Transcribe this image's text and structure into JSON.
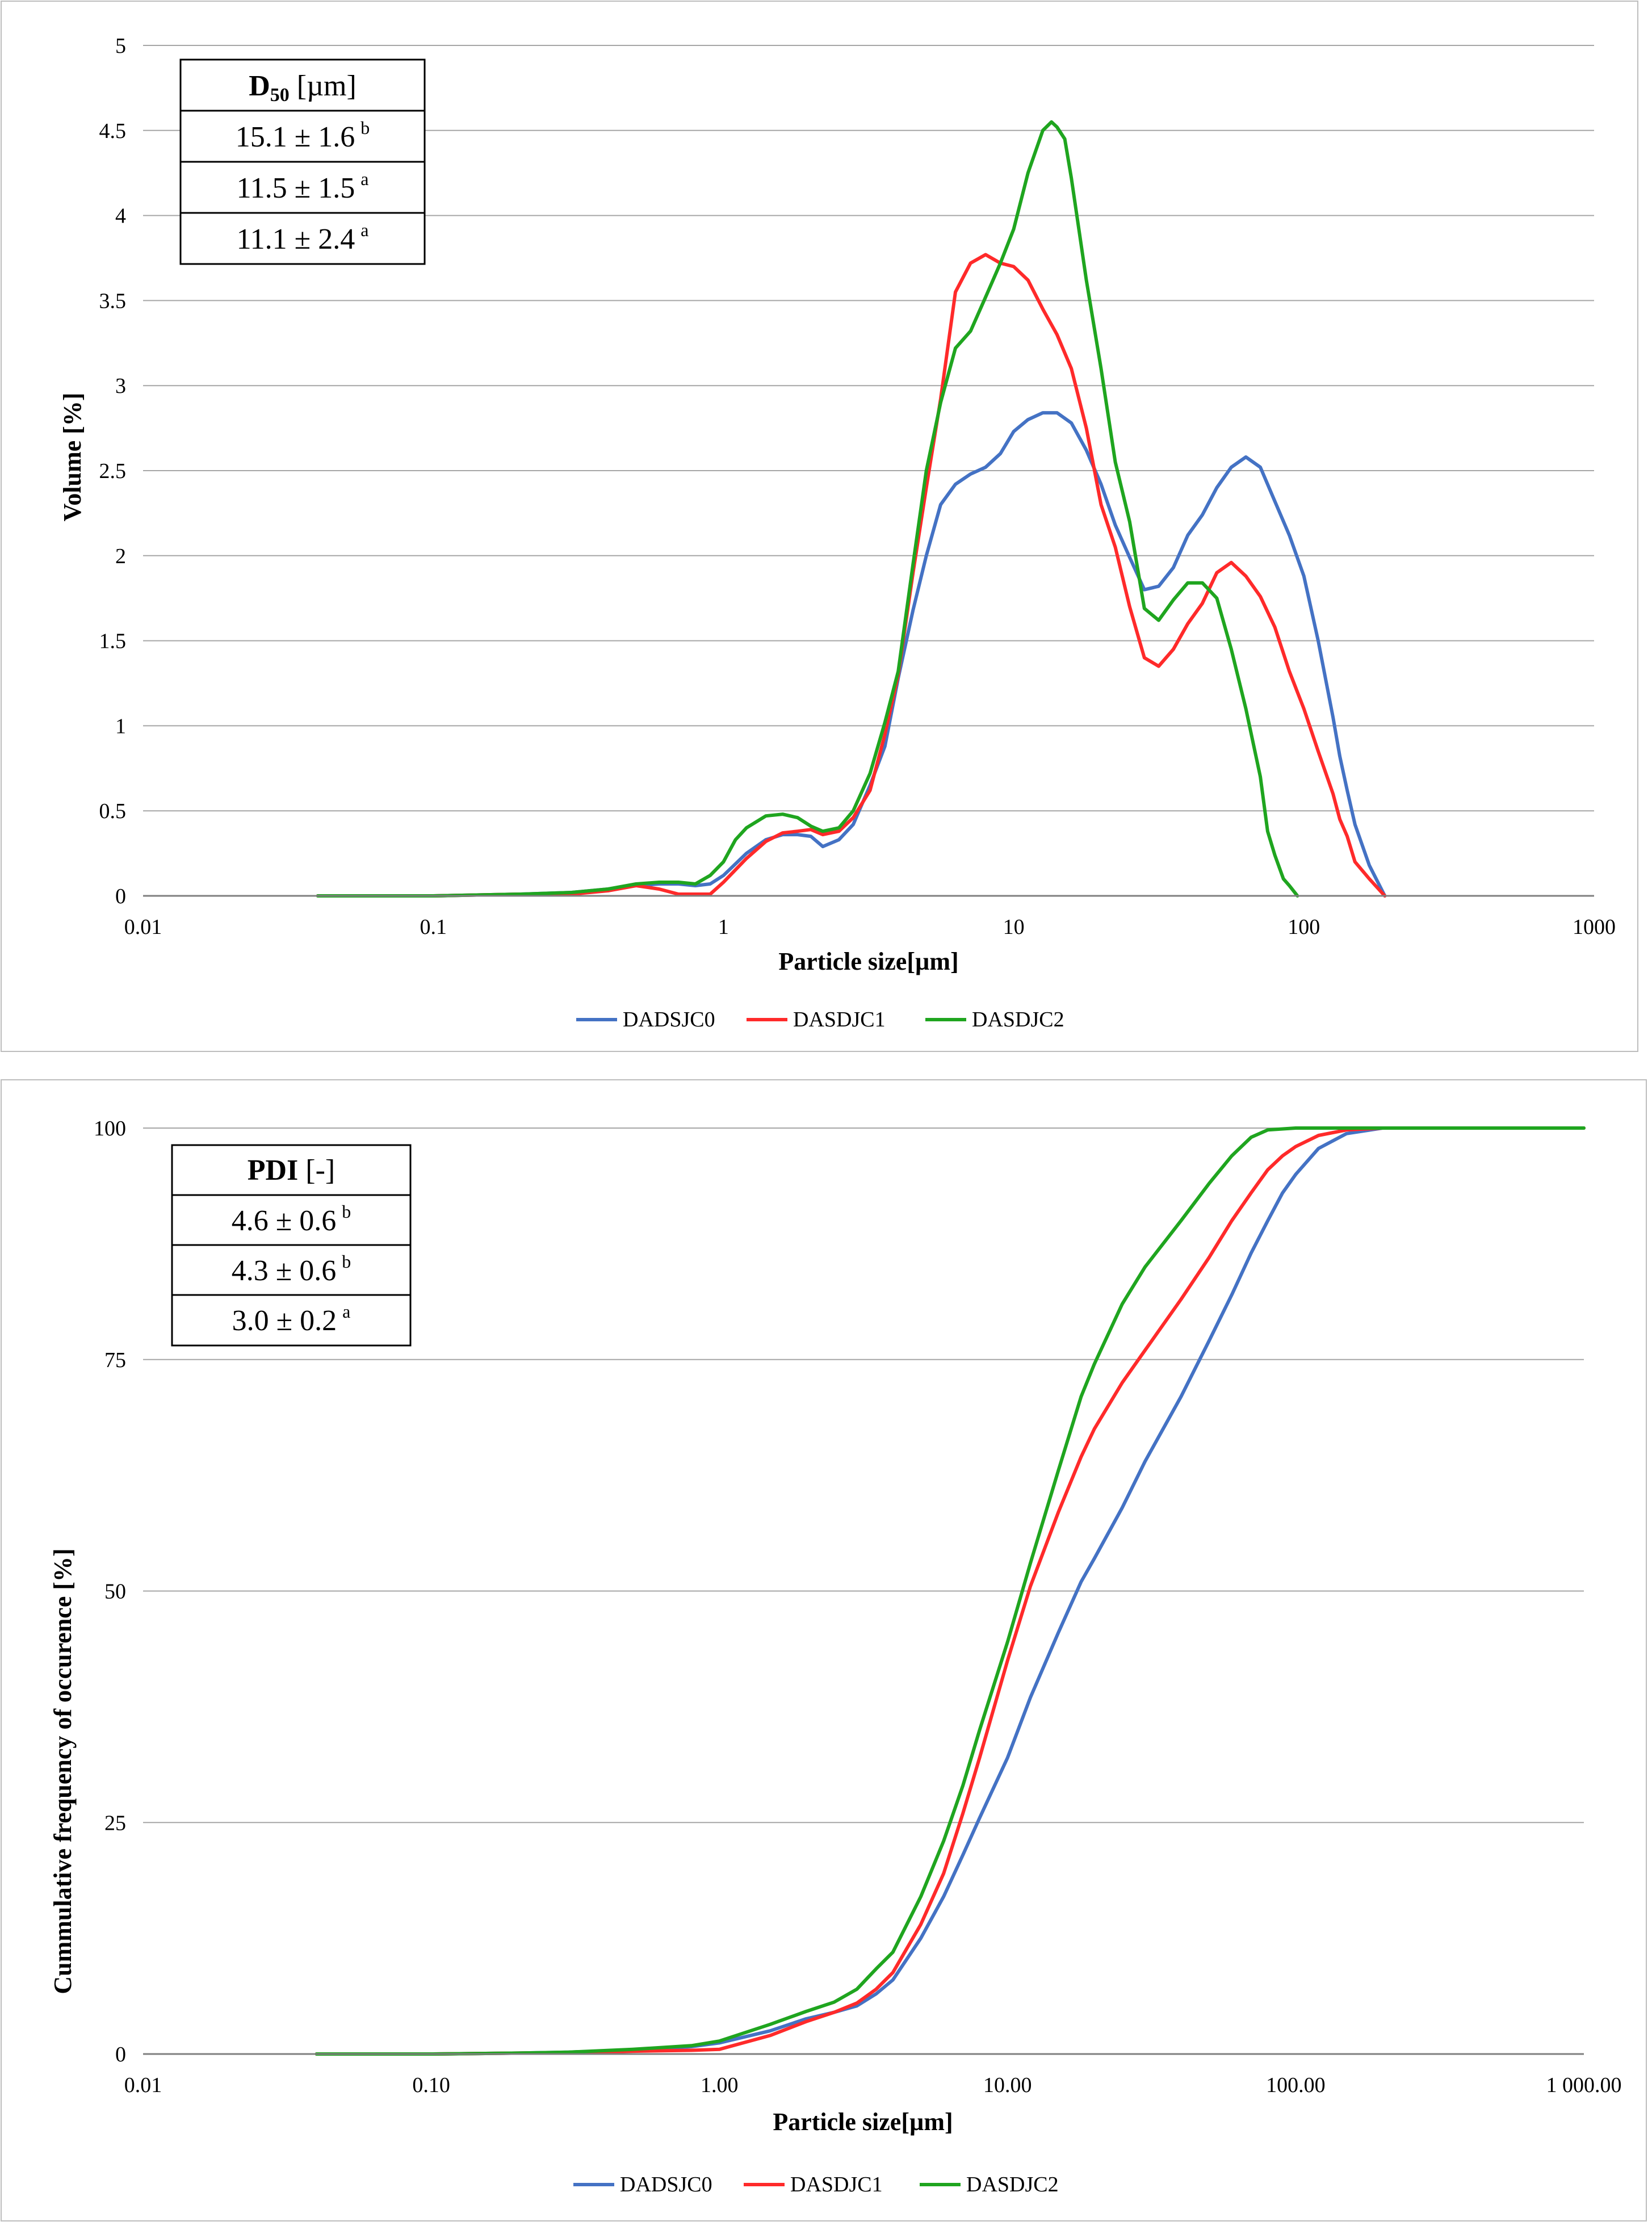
{
  "chart_data": [
    {
      "type": "line",
      "xscale": "log",
      "xlabel": "Particle size[µm]",
      "ylabel": "Volume [%]",
      "xlim": [
        0.01,
        1000
      ],
      "ylim": [
        0,
        5
      ],
      "grid": true,
      "legend": "bottom",
      "x_tick_labels": [
        "0.01",
        "0.1",
        "1",
        "10",
        "100",
        "1000"
      ],
      "x_tick_values": [
        0.01,
        0.1,
        1,
        10,
        100,
        1000
      ],
      "y_tick_labels": [
        "0",
        "0.5",
        "1",
        "1.5",
        "2",
        "2.5",
        "3",
        "3.5",
        "4",
        "4.5",
        "5"
      ],
      "y_tick_values": [
        0,
        0.5,
        1,
        1.5,
        2,
        2.5,
        3,
        3.5,
        4,
        4.5,
        5
      ],
      "table": {
        "header_main": "D",
        "header_sub": "50",
        "header_unit": " [µm]",
        "rows": [
          {
            "text": "15.1 ± 1.6",
            "sup": "b"
          },
          {
            "text": "11.5 ± 1.5",
            "sup": "a"
          },
          {
            "text": "11.1 ± 2.4",
            "sup": "a"
          }
        ]
      },
      "series": [
        {
          "name": "DADSJC0",
          "color": "#4472C4",
          "x": [
            0.04,
            0.1,
            0.2,
            0.3,
            0.4,
            0.5,
            0.6,
            0.7,
            0.8,
            0.9,
            1.0,
            1.2,
            1.4,
            1.6,
            1.8,
            2.0,
            2.2,
            2.5,
            2.8,
            3.2,
            3.6,
            4.0,
            4.5,
            5.0,
            5.6,
            6.3,
            7.1,
            8.0,
            9.0,
            10,
            11.2,
            12.6,
            14.1,
            15.8,
            17.8,
            20,
            22.4,
            25.1,
            28.2,
            31.6,
            35.5,
            39.8,
            44.7,
            50.1,
            56.2,
            63.1,
            70.8,
            79.4,
            89.1,
            100,
            112,
            126,
            133,
            141,
            150,
            168,
            190
          ],
          "y": [
            0,
            0,
            0.01,
            0.02,
            0.04,
            0.06,
            0.07,
            0.07,
            0.06,
            0.07,
            0.12,
            0.25,
            0.33,
            0.36,
            0.36,
            0.35,
            0.29,
            0.33,
            0.42,
            0.65,
            0.88,
            1.28,
            1.68,
            2.0,
            2.3,
            2.42,
            2.48,
            2.52,
            2.6,
            2.73,
            2.8,
            2.84,
            2.84,
            2.78,
            2.62,
            2.42,
            2.18,
            1.99,
            1.8,
            1.82,
            1.93,
            2.12,
            2.24,
            2.4,
            2.52,
            2.58,
            2.52,
            2.32,
            2.12,
            1.88,
            1.5,
            1.05,
            0.82,
            0.62,
            0.42,
            0.18,
            0
          ]
        },
        {
          "name": "DASDJC1",
          "color": "#FF2A2A",
          "x": [
            0.04,
            0.1,
            0.2,
            0.3,
            0.4,
            0.5,
            0.6,
            0.7,
            0.8,
            0.9,
            1.0,
            1.2,
            1.4,
            1.6,
            1.8,
            2.0,
            2.2,
            2.5,
            2.8,
            3.2,
            3.6,
            4.0,
            4.5,
            5.0,
            5.6,
            6.3,
            7.1,
            8.0,
            9.0,
            10,
            11.2,
            12.6,
            14.1,
            15.8,
            17.8,
            20,
            22.4,
            25.1,
            28.2,
            31.6,
            35.5,
            39.8,
            44.7,
            50.1,
            56.2,
            63.1,
            70.8,
            79.4,
            89.1,
            100,
            112,
            126,
            133,
            141,
            150,
            168,
            190
          ],
          "y": [
            0,
            0,
            0.01,
            0.01,
            0.03,
            0.06,
            0.04,
            0.01,
            0.01,
            0.01,
            0.08,
            0.22,
            0.32,
            0.37,
            0.38,
            0.39,
            0.36,
            0.38,
            0.46,
            0.62,
            0.95,
            1.3,
            1.9,
            2.4,
            2.92,
            3.55,
            3.72,
            3.77,
            3.72,
            3.7,
            3.62,
            3.45,
            3.3,
            3.1,
            2.75,
            2.3,
            2.05,
            1.7,
            1.4,
            1.35,
            1.45,
            1.6,
            1.72,
            1.9,
            1.96,
            1.88,
            1.76,
            1.58,
            1.32,
            1.1,
            0.85,
            0.6,
            0.45,
            0.35,
            0.2,
            0.1,
            0
          ]
        },
        {
          "name": "DASDJC2",
          "color": "#1FA51F",
          "x": [
            0.04,
            0.1,
            0.2,
            0.3,
            0.4,
            0.5,
            0.6,
            0.7,
            0.8,
            0.9,
            1.0,
            1.1,
            1.2,
            1.4,
            1.6,
            1.8,
            2.0,
            2.2,
            2.5,
            2.8,
            3.2,
            3.6,
            4.0,
            4.5,
            5.0,
            5.6,
            6.3,
            7.1,
            8.0,
            9.0,
            10,
            11.2,
            12.6,
            13.5,
            14.1,
            15.0,
            15.8,
            17.8,
            20,
            22.4,
            25.1,
            28.2,
            31.6,
            35.5,
            39.8,
            44.7,
            50.1,
            56.2,
            63.1,
            70.8,
            75,
            79.4,
            85,
            89.1,
            95
          ],
          "y": [
            0,
            0,
            0.01,
            0.02,
            0.04,
            0.07,
            0.08,
            0.08,
            0.07,
            0.12,
            0.2,
            0.33,
            0.4,
            0.47,
            0.48,
            0.46,
            0.41,
            0.38,
            0.4,
            0.5,
            0.72,
            1.02,
            1.32,
            1.95,
            2.5,
            2.9,
            3.22,
            3.32,
            3.52,
            3.72,
            3.92,
            4.25,
            4.5,
            4.55,
            4.52,
            4.45,
            4.22,
            3.62,
            3.1,
            2.55,
            2.2,
            1.69,
            1.62,
            1.74,
            1.84,
            1.84,
            1.75,
            1.45,
            1.1,
            0.7,
            0.38,
            0.24,
            0.1,
            0.06,
            0
          ]
        }
      ]
    },
    {
      "type": "line",
      "xscale": "log",
      "xlabel": "Particle size[µm]",
      "ylabel": "Cummulative  frequency of occurence [%]",
      "xlim": [
        0.01,
        1000
      ],
      "ylim": [
        0,
        100
      ],
      "grid": true,
      "legend": "bottom",
      "x_tick_labels": [
        "0.01",
        "0.10",
        "1.00",
        "10.00",
        "100.00",
        "1 000.00"
      ],
      "x_tick_values": [
        0.01,
        0.1,
        1,
        10,
        100,
        1000
      ],
      "y_tick_labels": [
        "0",
        "25",
        "50",
        "75",
        "100"
      ],
      "y_tick_values": [
        0,
        25,
        50,
        75,
        100
      ],
      "table": {
        "header_main": "PDI",
        "header_sub": "",
        "header_unit": " [-]",
        "rows": [
          {
            "text": "4.6 ± 0.6",
            "sup": "b"
          },
          {
            "text": "4.3 ± 0.6",
            "sup": "b"
          },
          {
            "text": "3.0 ± 0.2",
            "sup": "a"
          }
        ]
      },
      "series": [
        {
          "name": "DADSJC0",
          "color": "#4472C4",
          "x": [
            0.04,
            0.1,
            0.2,
            0.3,
            0.5,
            0.8,
            1.0,
            1.5,
            2.0,
            2.5,
            3.0,
            3.5,
            4.0,
            5.0,
            6.0,
            7.0,
            8.0,
            10,
            12,
            15,
            18,
            20,
            25,
            30,
            40,
            50,
            60,
            70,
            80,
            90,
            100,
            120,
            150,
            200,
            1000
          ],
          "y": [
            0,
            0,
            0.1,
            0.2,
            0.4,
            0.8,
            1.2,
            2.5,
            3.8,
            4.5,
            5.2,
            6.5,
            8.0,
            12.5,
            17.0,
            21.5,
            25.5,
            32.0,
            38.5,
            45.5,
            51.0,
            53.5,
            59.0,
            64.0,
            71.0,
            77.0,
            82.0,
            86.5,
            90.0,
            93.0,
            95.0,
            97.8,
            99.4,
            100,
            100
          ]
        },
        {
          "name": "DASDJC1",
          "color": "#FF2A2A",
          "x": [
            0.04,
            0.1,
            0.2,
            0.3,
            0.5,
            0.8,
            1.0,
            1.5,
            2.0,
            2.5,
            3.0,
            3.5,
            4.0,
            5.0,
            6.0,
            7.0,
            8.0,
            10,
            12,
            15,
            18,
            20,
            25,
            30,
            40,
            50,
            60,
            70,
            80,
            90,
            100,
            120,
            150,
            200,
            1000
          ],
          "y": [
            0,
            0,
            0.1,
            0.15,
            0.3,
            0.4,
            0.5,
            2.0,
            3.5,
            4.5,
            5.5,
            7.0,
            8.8,
            14.0,
            19.5,
            26.0,
            32.0,
            42.5,
            50.5,
            58.5,
            64.5,
            67.5,
            72.5,
            76.0,
            81.5,
            86.0,
            90.0,
            93.0,
            95.5,
            97.0,
            98.0,
            99.2,
            99.8,
            100,
            100
          ]
        },
        {
          "name": "DASDJC2",
          "color": "#1FA51F",
          "x": [
            0.04,
            0.1,
            0.2,
            0.3,
            0.5,
            0.8,
            1.0,
            1.5,
            2.0,
            2.5,
            3.0,
            3.5,
            4.0,
            5.0,
            6.0,
            7.0,
            8.0,
            10,
            12,
            15,
            18,
            20,
            25,
            30,
            40,
            50,
            60,
            70,
            80,
            100,
            1000
          ],
          "y": [
            0,
            0,
            0.1,
            0.2,
            0.5,
            0.9,
            1.4,
            3.2,
            4.6,
            5.6,
            7.0,
            9.2,
            11.0,
            17.0,
            23.0,
            29.0,
            35.0,
            44.5,
            53.0,
            63.0,
            71.0,
            74.5,
            81.0,
            85.0,
            90.0,
            94.0,
            97.0,
            99.0,
            99.8,
            100,
            100
          ]
        }
      ]
    }
  ]
}
